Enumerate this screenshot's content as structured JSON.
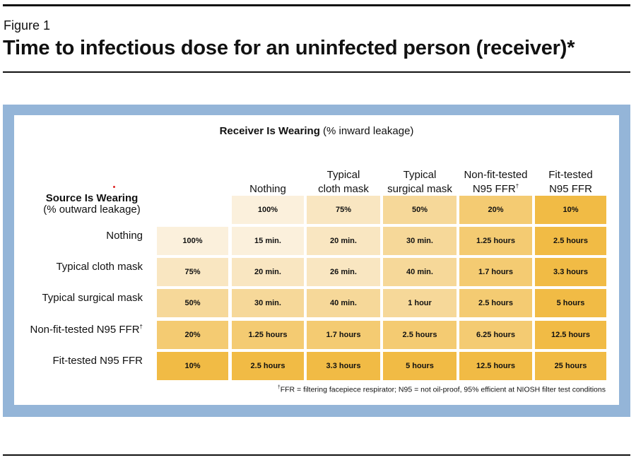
{
  "figure_label": "Figure 1",
  "title": "Time to infectious dose for an uninfected person (receiver)*",
  "chart_data": {
    "type": "table",
    "receiver_heading": {
      "bold": "Receiver Is Wearing",
      "rest": " (% inward leakage)"
    },
    "source_heading": {
      "bold": "Source Is Wearing",
      "rest": "(% outward leakage)"
    },
    "columns": [
      {
        "line1": "",
        "line2": "Nothing",
        "sup": "",
        "leakage": "100%"
      },
      {
        "line1": "Typical",
        "line2": "cloth mask",
        "sup": "",
        "leakage": "75%"
      },
      {
        "line1": "Typical",
        "line2": "surgical mask",
        "sup": "",
        "leakage": "50%"
      },
      {
        "line1": "Non-fit-tested",
        "line2": "N95 FFR",
        "sup": "†",
        "leakage": "20%"
      },
      {
        "line1": "Fit-tested",
        "line2": "N95 FFR",
        "sup": "",
        "leakage": "10%"
      }
    ],
    "rows": [
      {
        "label": "Nothing",
        "sup": "",
        "leakage": "100%",
        "values": [
          "15 min.",
          "20 min.",
          "30 min.",
          "1.25 hours",
          "2.5 hours"
        ]
      },
      {
        "label": "Typical cloth mask",
        "sup": "",
        "leakage": "75%",
        "values": [
          "20 min.",
          "26 min.",
          "40 min.",
          "1.7 hours",
          "3.3 hours"
        ]
      },
      {
        "label": "Typical surgical mask",
        "sup": "",
        "leakage": "50%",
        "values": [
          "30 min.",
          "40 min.",
          "1 hour",
          "2.5 hours",
          "5 hours"
        ]
      },
      {
        "label": "Non-fit-tested N95 FFR",
        "sup": "†",
        "leakage": "20%",
        "values": [
          "1.25 hours",
          "1.7 hours",
          "2.5 hours",
          "6.25 hours",
          "12.5 hours"
        ]
      },
      {
        "label": "Fit-tested N95 FFR",
        "sup": "",
        "leakage": "10%",
        "values": [
          "2.5 hours",
          "3.3 hours",
          "5 hours",
          "12.5 hours",
          "25 hours"
        ]
      }
    ],
    "colors": [
      "#fbf0dc",
      "#f9e6c1",
      "#f6d899",
      "#f4cb72",
      "#f1bb45"
    ],
    "footnote": {
      "sup": "†",
      "text": "FFR = filtering facepiece respirator; N95 = not oil-proof, 95% efficient at NIOSH filter test conditions"
    }
  }
}
